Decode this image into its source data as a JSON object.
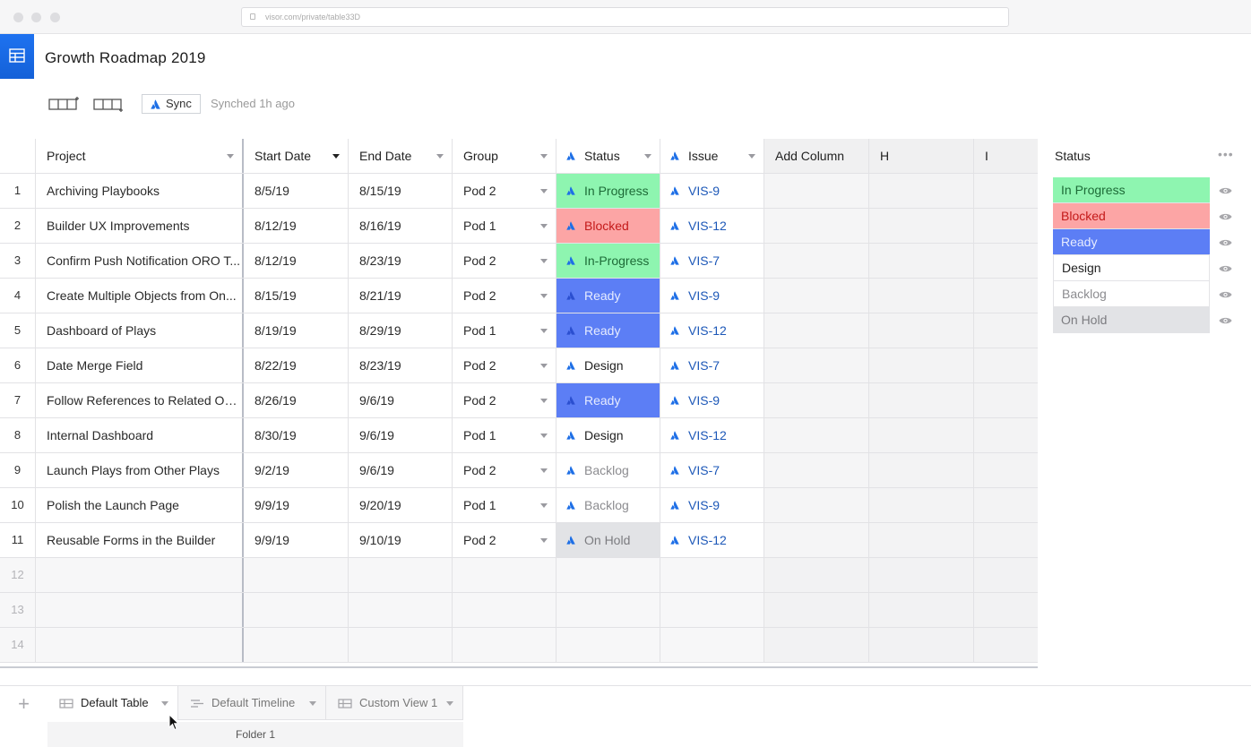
{
  "browser": {
    "url": "visor.com/private/table33D"
  },
  "app": {
    "title": "Growth Roadmap 2019"
  },
  "toolbar": {
    "sync_label": "Sync",
    "sync_status": "Synched 1h ago"
  },
  "columns": {
    "project": "Project",
    "start_date": "Start Date",
    "end_date": "End Date",
    "group": "Group",
    "status": "Status",
    "issue": "Issue",
    "add_column": "Add Column",
    "h": "H",
    "i": "I"
  },
  "rows": [
    {
      "num": "1",
      "project": "Archiving Playbooks",
      "start": "8/5/19",
      "end": "8/15/19",
      "group": "Pod 2",
      "status": "In Progress",
      "issue": "VIS-9"
    },
    {
      "num": "2",
      "project": "Builder UX Improvements",
      "start": "8/12/19",
      "end": "8/16/19",
      "group": "Pod 1",
      "status": "Blocked",
      "issue": "VIS-12"
    },
    {
      "num": "3",
      "project": "Confirm Push Notification ORO T...",
      "start": "8/12/19",
      "end": "8/23/19",
      "group": "Pod 2",
      "status": "In-Progress",
      "issue": "VIS-7"
    },
    {
      "num": "4",
      "project": "Create Multiple Objects from On...",
      "start": "8/15/19",
      "end": "8/21/19",
      "group": "Pod 2",
      "status": "Ready",
      "issue": "VIS-9"
    },
    {
      "num": "5",
      "project": "Dashboard of Plays",
      "start": "8/19/19",
      "end": "8/29/19",
      "group": "Pod 1",
      "status": "Ready",
      "issue": "VIS-12"
    },
    {
      "num": "6",
      "project": "Date Merge Field",
      "start": "8/22/19",
      "end": "8/23/19",
      "group": "Pod 2",
      "status": "Design",
      "issue": "VIS-7"
    },
    {
      "num": "7",
      "project": "Follow References to Related Obj...",
      "start": "8/26/19",
      "end": "9/6/19",
      "group": "Pod 2",
      "status": "Ready",
      "issue": "VIS-9"
    },
    {
      "num": "8",
      "project": "Internal Dashboard",
      "start": "8/30/19",
      "end": "9/6/19",
      "group": "Pod 1",
      "status": "Design",
      "issue": "VIS-12"
    },
    {
      "num": "9",
      "project": "Launch Plays from Other Plays",
      "start": "9/2/19",
      "end": "9/6/19",
      "group": "Pod 2",
      "status": "Backlog",
      "issue": "VIS-7"
    },
    {
      "num": "10",
      "project": "Polish the Launch Page",
      "start": "9/9/19",
      "end": "9/20/19",
      "group": "Pod 1",
      "status": "Backlog",
      "issue": "VIS-9"
    },
    {
      "num": "11",
      "project": "Reusable Forms in the Builder",
      "start": "9/9/19",
      "end": "9/10/19",
      "group": "Pod 2",
      "status": "On Hold",
      "issue": "VIS-12"
    }
  ],
  "empty_rows": [
    "12",
    "13",
    "14"
  ],
  "status_colors": {
    "In Progress": {
      "bg": "#8ef5b0",
      "fg": "#1d6b37"
    },
    "In-Progress": {
      "bg": "#8ef5b0",
      "fg": "#1d6b37"
    },
    "Blocked": {
      "bg": "#fca5a5",
      "fg": "#c41a1a"
    },
    "Ready": {
      "bg": "#5c7ef5",
      "fg": "#e6ecff"
    },
    "Design": {
      "bg": "#ffffff",
      "fg": "#222222"
    },
    "Backlog": {
      "bg": "#ffffff",
      "fg": "#8c8c90"
    },
    "On Hold": {
      "bg": "#e2e3e6",
      "fg": "#7c7c80"
    }
  },
  "status_panel": {
    "title": "Status",
    "items": [
      "In Progress",
      "Blocked",
      "Ready",
      "Design",
      "Backlog",
      "On Hold"
    ]
  },
  "tabs": [
    {
      "label": "Default Table",
      "active": true,
      "icon": "table-icon"
    },
    {
      "label": "Default Timeline",
      "active": false,
      "icon": "timeline-icon"
    },
    {
      "label": "Custom View 1",
      "active": false,
      "icon": "table-icon"
    }
  ],
  "folder": {
    "label": "Folder 1"
  },
  "colors": {
    "accent": "#1e72f0",
    "issue_link": "#1d58b8"
  }
}
